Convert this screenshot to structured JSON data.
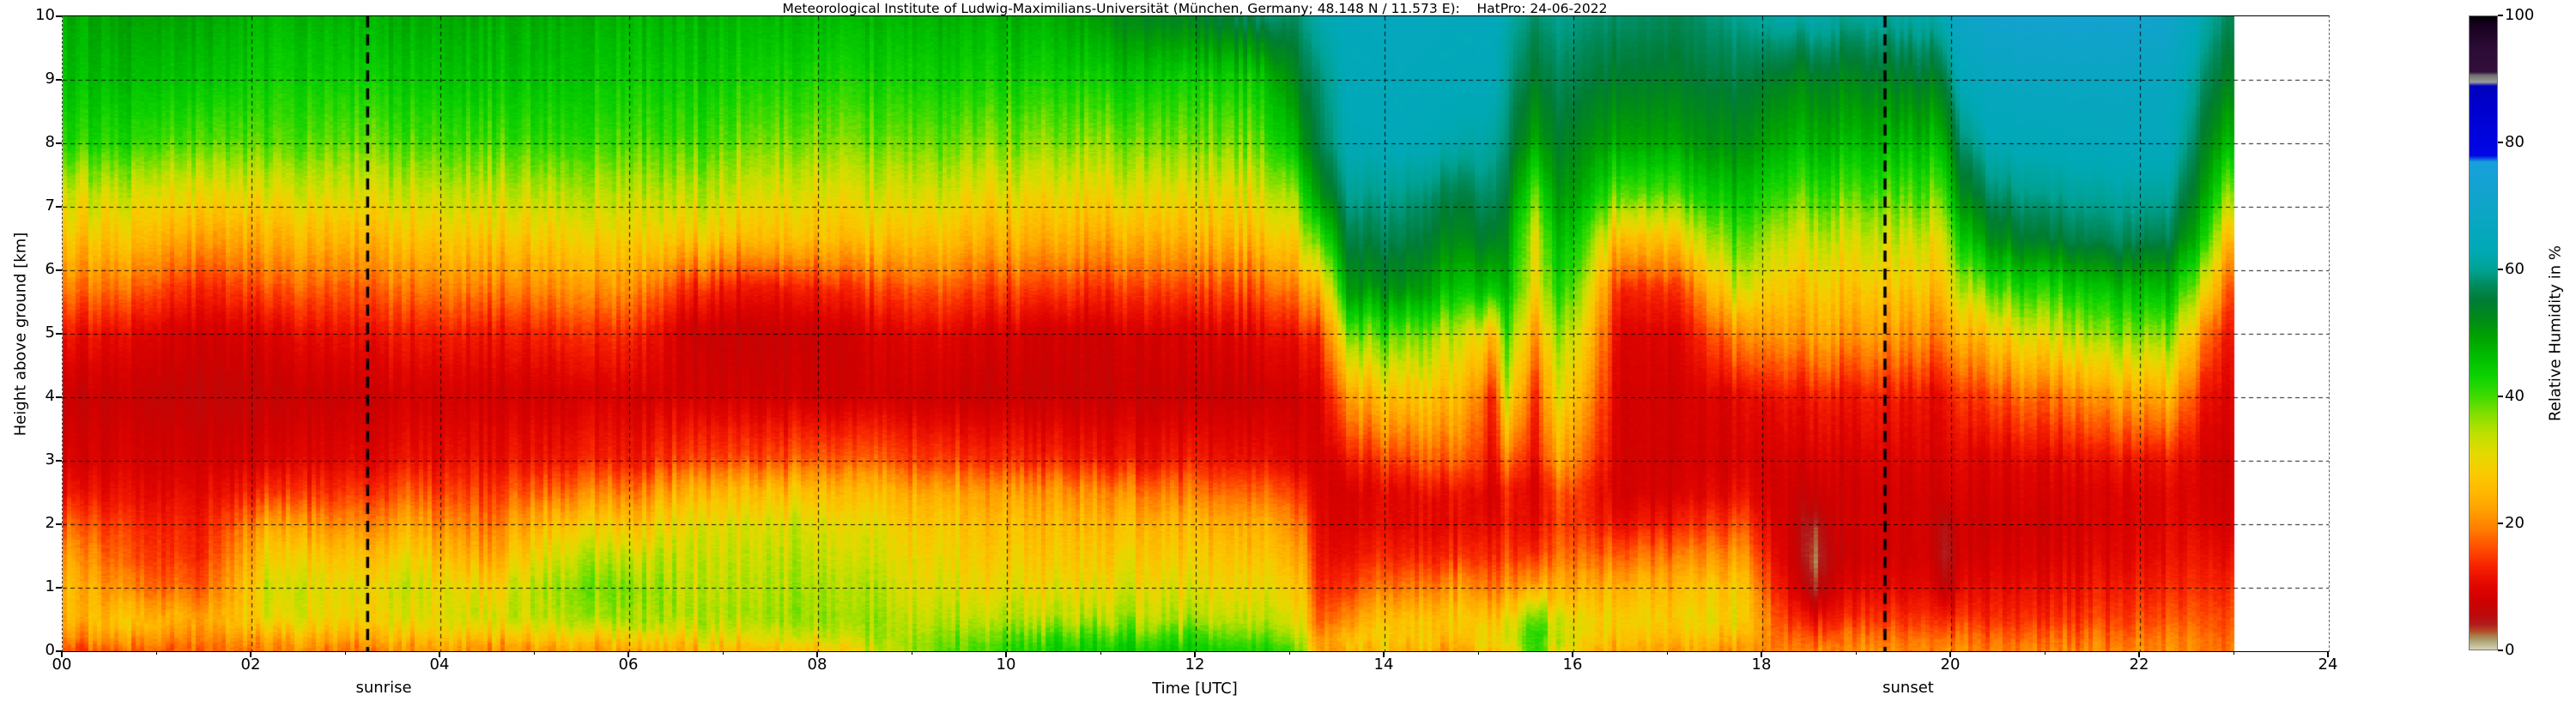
{
  "title": "Meteorological Institute of Ludwig-Maximilians-Universität (München, Germany; 48.148 N / 11.573 E):    HatPro: 24-06-2022",
  "axes": {
    "x_label": "Time [UTC]",
    "y_label": "Height above ground [km]",
    "x_tick_labels": [
      "00",
      "02",
      "04",
      "06",
      "08",
      "10",
      "12",
      "14",
      "16",
      "18",
      "20",
      "22",
      "24"
    ],
    "y_tick_labels": [
      "0",
      "1",
      "2",
      "3",
      "4",
      "5",
      "6",
      "7",
      "8",
      "9",
      "10"
    ],
    "annotations": {
      "sunrise": "sunrise",
      "sunset": "sunset"
    }
  },
  "colorbar": {
    "label": "Relative Humidity in %",
    "tick_labels": [
      "0",
      "20",
      "40",
      "60",
      "80",
      "100"
    ],
    "tick_values": [
      0,
      20,
      40,
      60,
      80,
      100
    ],
    "stops": [
      [
        0,
        "#000000"
      ],
      [
        1.2,
        "#16001e"
      ],
      [
        5,
        "#2c0b36"
      ],
      [
        8.8,
        "#330f3c"
      ],
      [
        9.3,
        "#6f6f6f"
      ],
      [
        10.4,
        "#999999"
      ],
      [
        11,
        "#0000bb"
      ],
      [
        14,
        "#0000cc"
      ],
      [
        22,
        "#0006e6"
      ],
      [
        23,
        "#19a0dc"
      ],
      [
        27,
        "#14a2d0"
      ],
      [
        32,
        "#0aa6c2"
      ],
      [
        37,
        "#00a9b6"
      ],
      [
        40,
        "#00a293"
      ],
      [
        42.5,
        "#008a5c"
      ],
      [
        45,
        "#007c34"
      ],
      [
        48,
        "#008c16"
      ],
      [
        51,
        "#00a400"
      ],
      [
        54,
        "#00bf00"
      ],
      [
        57,
        "#0ed200"
      ],
      [
        60,
        "#3edb00"
      ],
      [
        63,
        "#86df00"
      ],
      [
        66,
        "#bfe000"
      ],
      [
        69,
        "#e3da00"
      ],
      [
        72,
        "#f8cb00"
      ],
      [
        75,
        "#ffb900"
      ],
      [
        78,
        "#ffa000"
      ],
      [
        81,
        "#ff7d00"
      ],
      [
        84,
        "#ff4d00"
      ],
      [
        87,
        "#f62000"
      ],
      [
        90,
        "#e00500"
      ],
      [
        92.5,
        "#cd0101"
      ],
      [
        94.5,
        "#bd0909"
      ],
      [
        96,
        "#b01b1b"
      ],
      [
        97,
        "#b24527"
      ],
      [
        97.8,
        "#ab7a46"
      ],
      [
        98.6,
        "#aaa173"
      ],
      [
        100,
        "#d7d3b3"
      ]
    ]
  },
  "chart_data": {
    "type": "heatmap",
    "title": "Relative humidity time-height cross-section from HATPRO microwave radiometer",
    "x_unit": "hours UTC",
    "y_unit": "km above ground",
    "x_range": [
      0,
      24
    ],
    "y_range": [
      0,
      10
    ],
    "data_end_hour": 23.0,
    "sunrise_hour": 3.23,
    "sunset_hour": 19.3,
    "grid": "dashed, 1 km horizontal / 2 h vertical",
    "legend_position": "right colorbar 0-100 %",
    "heights_km": [
      0,
      0.2,
      0.5,
      1,
      1.5,
      2,
      2.5,
      3,
      4,
      5,
      5.7,
      6.5,
      7.2,
      8,
      9,
      10
    ],
    "profiles": [
      {
        "t": 0.0,
        "rh": [
          85,
          80,
          76,
          74,
          77,
          82,
          88,
          91,
          93,
          88,
          81,
          73,
          67,
          58,
          54,
          52
        ]
      },
      {
        "t": 0.7,
        "rh": [
          84,
          79,
          73,
          80,
          84,
          86,
          89,
          91,
          93,
          90,
          83,
          74,
          68,
          59,
          54,
          51
        ]
      },
      {
        "t": 1.5,
        "rh": [
          83,
          80,
          78,
          84,
          87,
          88,
          90,
          92,
          94,
          92,
          87,
          78,
          70,
          61,
          55,
          51
        ]
      },
      {
        "t": 2.2,
        "rh": [
          80,
          76,
          68,
          66,
          70,
          76,
          85,
          90,
          93,
          90,
          83,
          75,
          68,
          60,
          56,
          53
        ]
      },
      {
        "t": 3.0,
        "rh": [
          82,
          78,
          72,
          70,
          74,
          80,
          86,
          90,
          93,
          89,
          84,
          76,
          69,
          62,
          57,
          53
        ]
      },
      {
        "t": 3.7,
        "rh": [
          80,
          75,
          70,
          68,
          72,
          78,
          84,
          89,
          92,
          88,
          82,
          74,
          68,
          61,
          56,
          52
        ]
      },
      {
        "t": 4.5,
        "rh": [
          80,
          74,
          68,
          72,
          78,
          82,
          86,
          89,
          92,
          88,
          81,
          73,
          67,
          60,
          55,
          52
        ]
      },
      {
        "t": 5.2,
        "rh": [
          79,
          73,
          66,
          64,
          68,
          74,
          82,
          88,
          92,
          87,
          80,
          72,
          66,
          59,
          55,
          52
        ]
      },
      {
        "t": 6.0,
        "rh": [
          78,
          72,
          64,
          62,
          66,
          72,
          80,
          87,
          91,
          86,
          79,
          71,
          66,
          60,
          56,
          53
        ]
      },
      {
        "t": 6.7,
        "rh": [
          76,
          70,
          66,
          67,
          68,
          70,
          76,
          85,
          92,
          93,
          87,
          73,
          66,
          60,
          56,
          53
        ]
      },
      {
        "t": 7.5,
        "rh": [
          74,
          68,
          64,
          65,
          66,
          68,
          74,
          84,
          92,
          93,
          88,
          74,
          68,
          62,
          57,
          53
        ]
      },
      {
        "t": 8.2,
        "rh": [
          72,
          66,
          63,
          64,
          66,
          68,
          73,
          82,
          92,
          92,
          86,
          73,
          68,
          62,
          57,
          53
        ]
      },
      {
        "t": 9.0,
        "rh": [
          64,
          64,
          66,
          68,
          70,
          72,
          76,
          84,
          92,
          90,
          84,
          74,
          68,
          62,
          57,
          53
        ]
      },
      {
        "t": 9.7,
        "rh": [
          60,
          62,
          66,
          70,
          72,
          74,
          78,
          86,
          93,
          91,
          85,
          76,
          70,
          63,
          57,
          53
        ]
      },
      {
        "t": 10.5,
        "rh": [
          57,
          60,
          66,
          70,
          73,
          75,
          79,
          87,
          93,
          92,
          85,
          76,
          70,
          63,
          57,
          52
        ]
      },
      {
        "t": 11.2,
        "rh": [
          56,
          59,
          65,
          69,
          72,
          75,
          80,
          88,
          93,
          92,
          86,
          77,
          70,
          63,
          56,
          48
        ]
      },
      {
        "t": 12.0,
        "rh": [
          57,
          60,
          66,
          70,
          73,
          76,
          82,
          88,
          93,
          91,
          85,
          76,
          70,
          63,
          57,
          46
        ]
      },
      {
        "t": 12.7,
        "rh": [
          58,
          62,
          67,
          71,
          74,
          77,
          83,
          89,
          93,
          90,
          84,
          75,
          69,
          62,
          56,
          42
        ]
      },
      {
        "t": 13.1,
        "rh": [
          60,
          64,
          68,
          72,
          76,
          80,
          85,
          90,
          92,
          88,
          80,
          70,
          62,
          52,
          46,
          42
        ]
      },
      {
        "t": 13.3,
        "rh": [
          78,
          80,
          84,
          87,
          89,
          90,
          91,
          92,
          92,
          88,
          78,
          62,
          50,
          44,
          42,
          38
        ]
      },
      {
        "t": 13.6,
        "rh": [
          76,
          72,
          78,
          84,
          88,
          90,
          91,
          88,
          78,
          62,
          50,
          44,
          40,
          37,
          36,
          35
        ]
      },
      {
        "t": 14.2,
        "rh": [
          75,
          71,
          72,
          80,
          86,
          89,
          89,
          84,
          72,
          60,
          48,
          43,
          40,
          36,
          35,
          34
        ]
      },
      {
        "t": 14.8,
        "rh": [
          78,
          74,
          72,
          78,
          86,
          89,
          88,
          82,
          74,
          66,
          55,
          48,
          44,
          38,
          36,
          35
        ]
      },
      {
        "t": 15.15,
        "rh": [
          74,
          71,
          74,
          82,
          87,
          90,
          92,
          90,
          88,
          76,
          56,
          46,
          42,
          39,
          36,
          35
        ]
      },
      {
        "t": 15.3,
        "rh": [
          72,
          68,
          70,
          78,
          84,
          87,
          86,
          80,
          66,
          58,
          52,
          48,
          45,
          42,
          40,
          38
        ]
      },
      {
        "t": 15.6,
        "rh": [
          58,
          58,
          63,
          80,
          88,
          91,
          92,
          90,
          88,
          80,
          72,
          70,
          62,
          52,
          46,
          42
        ]
      },
      {
        "t": 15.8,
        "rh": [
          70,
          66,
          68,
          76,
          82,
          85,
          84,
          78,
          70,
          64,
          58,
          54,
          50,
          46,
          43,
          40
        ]
      },
      {
        "t": 16.1,
        "rh": [
          74,
          70,
          70,
          76,
          82,
          86,
          86,
          82,
          76,
          70,
          64,
          58,
          52,
          48,
          44,
          41
        ]
      },
      {
        "t": 16.5,
        "rh": [
          78,
          74,
          72,
          76,
          83,
          89,
          92,
          92,
          92,
          91,
          88,
          76,
          62,
          52,
          46,
          42
        ]
      },
      {
        "t": 17.2,
        "rh": [
          79,
          75,
          72,
          75,
          81,
          87,
          91,
          92,
          92,
          90,
          85,
          72,
          60,
          51,
          46,
          43
        ]
      },
      {
        "t": 17.7,
        "rh": [
          79,
          75,
          70,
          72,
          78,
          84,
          89,
          91,
          90,
          80,
          68,
          60,
          54,
          48,
          44,
          40
        ]
      },
      {
        "t": 18.3,
        "rh": [
          80,
          82,
          86,
          90,
          92,
          92,
          92,
          91,
          88,
          78,
          73,
          67,
          60,
          53,
          47,
          38
        ]
      },
      {
        "t": 18.55,
        "rh": [
          80,
          83,
          88,
          96,
          98,
          97,
          93,
          91,
          88,
          78,
          73,
          67,
          60,
          53,
          47,
          38
        ]
      },
      {
        "t": 18.8,
        "rh": [
          80,
          82,
          87,
          91,
          93,
          92,
          92,
          91,
          88,
          78,
          73,
          67,
          60,
          53,
          47,
          39
        ]
      },
      {
        "t": 19.3,
        "rh": [
          80,
          82,
          86,
          90,
          92,
          92,
          92,
          91,
          88,
          79,
          74,
          68,
          61,
          54,
          47,
          39
        ]
      },
      {
        "t": 19.8,
        "rh": [
          80,
          82,
          86,
          90,
          92,
          92,
          92,
          91,
          89,
          80,
          74,
          68,
          61,
          54,
          46,
          38
        ]
      },
      {
        "t": 19.95,
        "rh": [
          80,
          83,
          88,
          95,
          97,
          96,
          92,
          91,
          89,
          80,
          74,
          68,
          60,
          52,
          44,
          36
        ]
      },
      {
        "t": 20.1,
        "rh": [
          80,
          82,
          86,
          90,
          92,
          92,
          91,
          90,
          86,
          76,
          66,
          56,
          48,
          42,
          36,
          30
        ]
      },
      {
        "t": 20.4,
        "rh": [
          80,
          82,
          86,
          89,
          91,
          92,
          91,
          90,
          84,
          72,
          60,
          48,
          42,
          37,
          33,
          28
        ]
      },
      {
        "t": 21.0,
        "rh": [
          80,
          82,
          86,
          89,
          91,
          92,
          91,
          90,
          82,
          68,
          58,
          45,
          40,
          36,
          32,
          27
        ]
      },
      {
        "t": 21.7,
        "rh": [
          80,
          82,
          85,
          88,
          90,
          91,
          91,
          89,
          79,
          64,
          55,
          43,
          39,
          35,
          32,
          27
        ]
      },
      {
        "t": 22.3,
        "rh": [
          80,
          81,
          84,
          87,
          89,
          90,
          90,
          88,
          76,
          62,
          53,
          43,
          39,
          35,
          33,
          28
        ]
      },
      {
        "t": 22.7,
        "rh": [
          80,
          81,
          83,
          86,
          88,
          90,
          91,
          91,
          88,
          80,
          68,
          56,
          50,
          46,
          42,
          38
        ]
      },
      {
        "t": 23.0,
        "rh": [
          82,
          82,
          84,
          86,
          89,
          91,
          92,
          92,
          91,
          90,
          88,
          80,
          68,
          56,
          48,
          44
        ]
      }
    ]
  }
}
